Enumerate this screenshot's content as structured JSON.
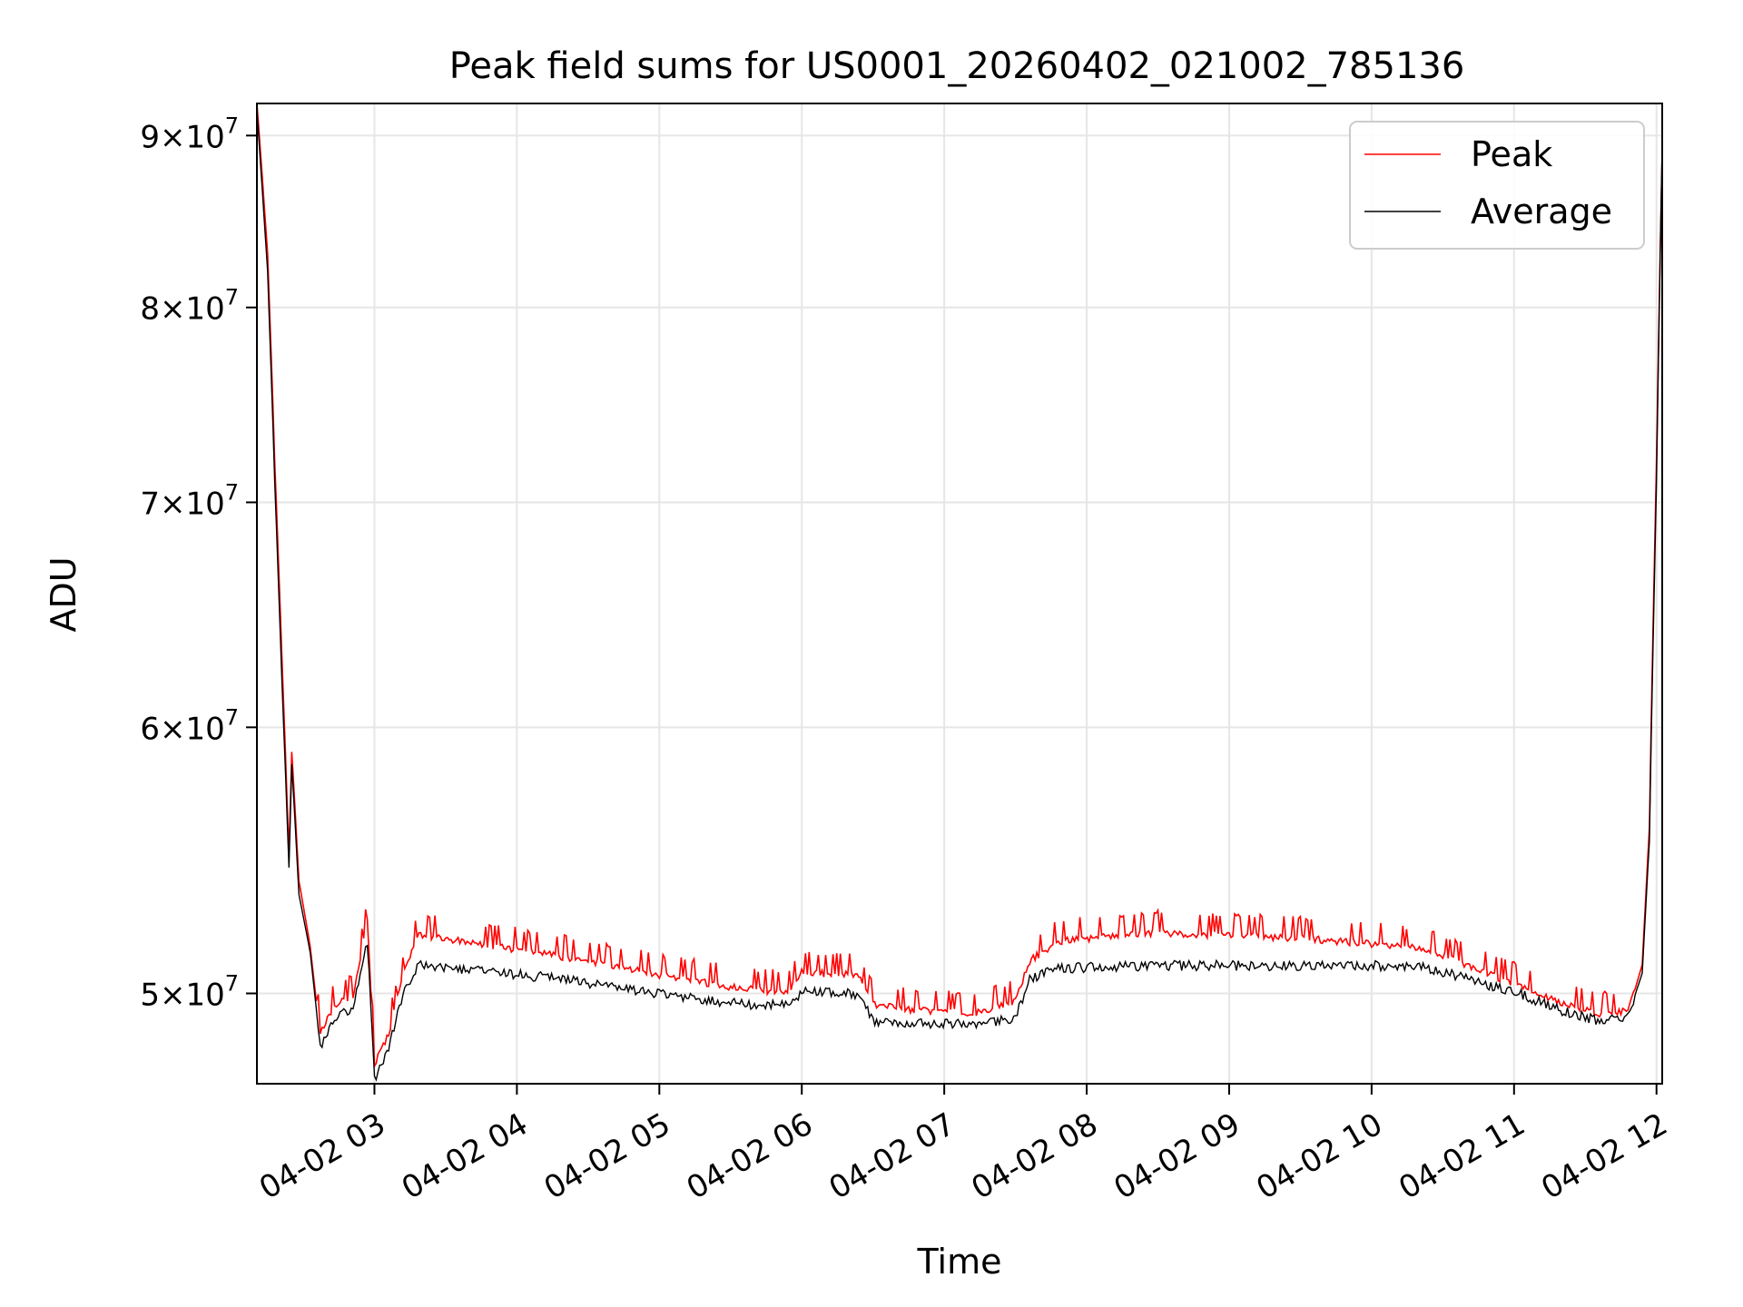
{
  "chart_data": {
    "type": "line",
    "title": "Peak field sums for US0001_20260402_021002_785136",
    "xlabel": "Time",
    "ylabel": "ADU",
    "yscale": "log",
    "xlim": [
      2.175,
      12.04
    ],
    "ylim": [
      47000000,
      92000000
    ],
    "grid": true,
    "legend_position": "top-right",
    "x_units": "hours (04-02)",
    "x_ticks": [
      {
        "value": 3,
        "label": "04-02 03"
      },
      {
        "value": 4,
        "label": "04-02 04"
      },
      {
        "value": 5,
        "label": "04-02 05"
      },
      {
        "value": 6,
        "label": "04-02 06"
      },
      {
        "value": 7,
        "label": "04-02 07"
      },
      {
        "value": 8,
        "label": "04-02 08"
      },
      {
        "value": 9,
        "label": "04-02 09"
      },
      {
        "value": 10,
        "label": "04-02 10"
      },
      {
        "value": 11,
        "label": "04-02 11"
      },
      {
        "value": 12,
        "label": "04-02 12"
      }
    ],
    "y_ticks": [
      {
        "value": 50000000,
        "mantissa": "5",
        "base": "10",
        "exp": "7"
      },
      {
        "value": 60000000,
        "mantissa": "6",
        "base": "10",
        "exp": "7"
      },
      {
        "value": 70000000,
        "mantissa": "7",
        "base": "10",
        "exp": "7"
      },
      {
        "value": 80000000,
        "mantissa": "8",
        "base": "10",
        "exp": "7"
      },
      {
        "value": 90000000,
        "mantissa": "9",
        "base": "10",
        "exp": "7"
      }
    ],
    "series": [
      {
        "name": "Peak",
        "color": "#ff0000",
        "points": [
          [
            2.175,
            92000000
          ],
          [
            2.25,
            83000000
          ],
          [
            2.3,
            72000000
          ],
          [
            2.35,
            63000000
          ],
          [
            2.4,
            55000000
          ],
          [
            2.42,
            59000000
          ],
          [
            2.47,
            54000000
          ],
          [
            2.55,
            51600000
          ],
          [
            2.62,
            48500000
          ],
          [
            2.72,
            49500000
          ],
          [
            2.85,
            49800000
          ],
          [
            2.95,
            52500000
          ],
          [
            3.0,
            47500000
          ],
          [
            3.1,
            48500000
          ],
          [
            3.2,
            50500000
          ],
          [
            3.3,
            51900000
          ],
          [
            3.6,
            51700000
          ],
          [
            4.0,
            51400000
          ],
          [
            4.5,
            51000000
          ],
          [
            5.0,
            50500000
          ],
          [
            5.5,
            50100000
          ],
          [
            5.9,
            49900000
          ],
          [
            6.0,
            50600000
          ],
          [
            6.4,
            50500000
          ],
          [
            6.5,
            49500000
          ],
          [
            6.8,
            49300000
          ],
          [
            7.2,
            49200000
          ],
          [
            7.5,
            49600000
          ],
          [
            7.6,
            51000000
          ],
          [
            7.8,
            51700000
          ],
          [
            8.5,
            52000000
          ],
          [
            9.0,
            51900000
          ],
          [
            9.5,
            51800000
          ],
          [
            10.0,
            51600000
          ],
          [
            10.4,
            51400000
          ],
          [
            10.7,
            50800000
          ],
          [
            11.0,
            50200000
          ],
          [
            11.3,
            49600000
          ],
          [
            11.6,
            49200000
          ],
          [
            11.8,
            49300000
          ],
          [
            11.9,
            51000000
          ],
          [
            11.95,
            56000000
          ],
          [
            12.0,
            72000000
          ],
          [
            12.04,
            89000000
          ]
        ]
      },
      {
        "name": "Average",
        "color": "#000000",
        "points": [
          [
            2.175,
            91500000
          ],
          [
            2.25,
            82000000
          ],
          [
            2.3,
            71000000
          ],
          [
            2.35,
            62000000
          ],
          [
            2.4,
            54500000
          ],
          [
            2.42,
            58500000
          ],
          [
            2.47,
            53500000
          ],
          [
            2.55,
            51400000
          ],
          [
            2.62,
            48200000
          ],
          [
            2.72,
            49200000
          ],
          [
            2.85,
            49500000
          ],
          [
            2.95,
            51800000
          ],
          [
            3.0,
            47200000
          ],
          [
            3.1,
            48200000
          ],
          [
            3.2,
            50000000
          ],
          [
            3.3,
            51000000
          ],
          [
            3.6,
            50900000
          ],
          [
            4.0,
            50700000
          ],
          [
            4.5,
            50400000
          ],
          [
            5.0,
            50000000
          ],
          [
            5.5,
            49700000
          ],
          [
            5.9,
            49600000
          ],
          [
            6.0,
            50100000
          ],
          [
            6.4,
            50000000
          ],
          [
            6.5,
            49100000
          ],
          [
            6.8,
            49000000
          ],
          [
            7.2,
            49000000
          ],
          [
            7.5,
            49200000
          ],
          [
            7.6,
            50500000
          ],
          [
            7.8,
            50900000
          ],
          [
            8.5,
            51000000
          ],
          [
            9.0,
            51000000
          ],
          [
            9.5,
            51000000
          ],
          [
            10.0,
            51000000
          ],
          [
            10.4,
            50900000
          ],
          [
            10.7,
            50500000
          ],
          [
            11.0,
            50100000
          ],
          [
            11.3,
            49500000
          ],
          [
            11.6,
            49100000
          ],
          [
            11.8,
            49200000
          ],
          [
            11.9,
            50700000
          ],
          [
            11.95,
            55500000
          ],
          [
            12.0,
            71000000
          ],
          [
            12.04,
            89500000
          ]
        ]
      }
    ]
  }
}
